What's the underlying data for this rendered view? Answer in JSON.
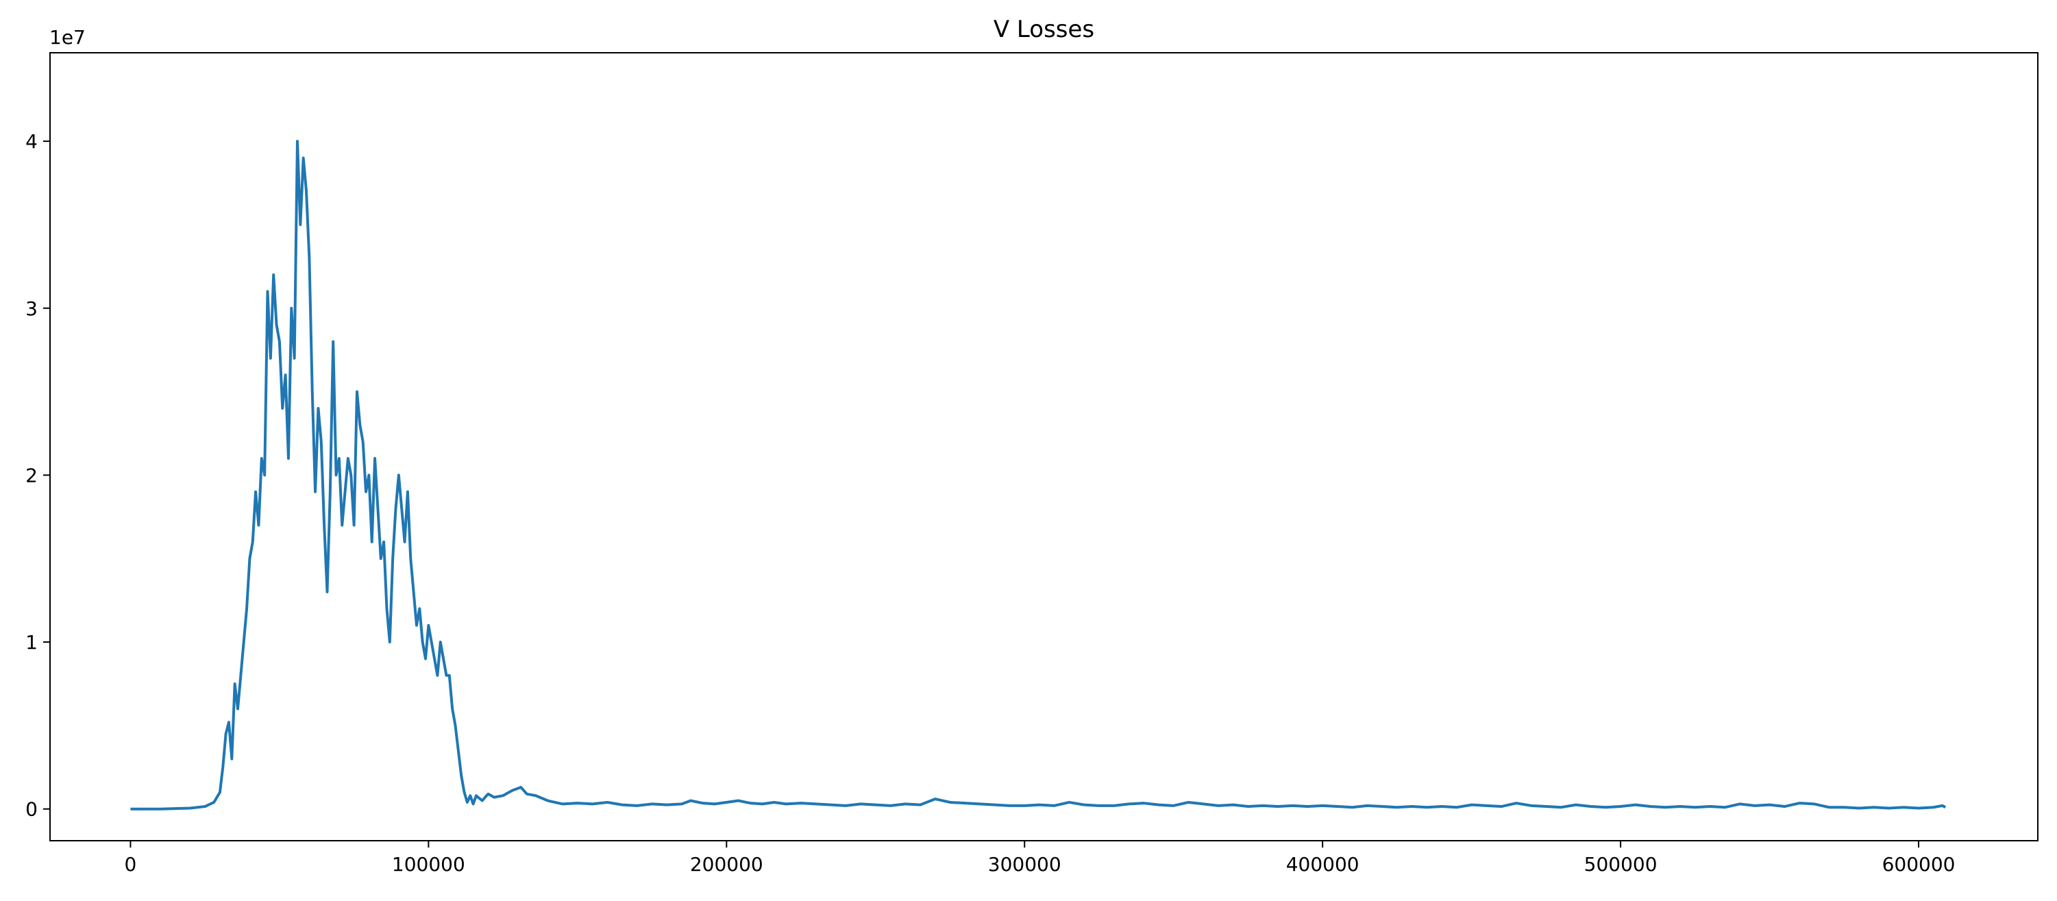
{
  "chart_data": {
    "type": "line",
    "title": "V Losses",
    "xlabel": "",
    "ylabel": "",
    "y_offset_text": "1e7",
    "xlim": [
      -27000,
      640000
    ],
    "ylim": [
      -1.9,
      45.3
    ],
    "y_scale_factor": 10000000,
    "x_ticks": [
      0,
      100000,
      200000,
      300000,
      400000,
      500000,
      600000
    ],
    "x_tick_labels": [
      "0",
      "100000",
      "200000",
      "300000",
      "400000",
      "500000",
      "600000"
    ],
    "y_ticks": [
      0,
      10,
      20,
      30,
      40
    ],
    "y_tick_labels": [
      "0",
      "1",
      "2",
      "3",
      "4"
    ],
    "grid": false,
    "colors": {
      "line": "#1f77b4",
      "axes": "#000000",
      "background": "#ffffff"
    },
    "series": [
      {
        "x": [
          0,
          10000,
          20000,
          25000,
          28000,
          30000,
          31000,
          32000,
          33000,
          34000,
          35000,
          36000,
          37000,
          38000,
          39000,
          40000,
          41000,
          42000,
          43000,
          44000,
          45000,
          46000,
          47000,
          48000,
          49000,
          50000,
          51000,
          52000,
          53000,
          54000,
          55000,
          56000,
          57000,
          58000,
          59000,
          60000,
          61000,
          62000,
          63000,
          64000,
          65000,
          66000,
          67000,
          68000,
          69000,
          70000,
          71000,
          72000,
          73000,
          74000,
          75000,
          76000,
          77000,
          78000,
          79000,
          80000,
          81000,
          82000,
          83000,
          84000,
          85000,
          86000,
          87000,
          88000,
          89000,
          90000,
          91000,
          92000,
          93000,
          94000,
          95000,
          96000,
          97000,
          98000,
          99000,
          100000,
          101000,
          102000,
          103000,
          104000,
          105000,
          106000,
          107000,
          108000,
          109000,
          110000,
          111000,
          112000,
          113000,
          114000,
          115000,
          116000,
          118000,
          120000,
          122000,
          125000,
          128000,
          131000,
          133000,
          136000,
          140000,
          145000,
          150000,
          155000,
          160000,
          165000,
          170000,
          175000,
          180000,
          185000,
          188000,
          192000,
          196000,
          200000,
          204000,
          208000,
          212000,
          216000,
          220000,
          225000,
          230000,
          235000,
          240000,
          245000,
          250000,
          255000,
          260000,
          265000,
          270000,
          275000,
          280000,
          285000,
          290000,
          295000,
          300000,
          305000,
          310000,
          315000,
          320000,
          325000,
          330000,
          335000,
          340000,
          345000,
          350000,
          355000,
          360000,
          365000,
          370000,
          375000,
          380000,
          385000,
          390000,
          395000,
          400000,
          405000,
          410000,
          415000,
          420000,
          425000,
          430000,
          435000,
          440000,
          445000,
          450000,
          455000,
          460000,
          465000,
          470000,
          475000,
          480000,
          485000,
          490000,
          495000,
          500000,
          505000,
          510000,
          515000,
          520000,
          525000,
          530000,
          535000,
          540000,
          545000,
          550000,
          555000,
          560000,
          565000,
          570000,
          575000,
          580000,
          585000,
          590000,
          595000,
          600000,
          605000,
          608000,
          609000
        ],
        "values": [
          0,
          0,
          0.05,
          0.15,
          0.4,
          1,
          2.5,
          4.5,
          5.2,
          3,
          7.5,
          6,
          8,
          10,
          12,
          15,
          16,
          19,
          17,
          21,
          20,
          31,
          27,
          32,
          29,
          28,
          24,
          26,
          21,
          30,
          27,
          40,
          35,
          39,
          37,
          33,
          25,
          19,
          24,
          22,
          17,
          13,
          19,
          28,
          20,
          21,
          17,
          19,
          21,
          20,
          17,
          25,
          23,
          22,
          19,
          20,
          16,
          21,
          18,
          15,
          16,
          12,
          10,
          15,
          18,
          20,
          18,
          16,
          19,
          15,
          13,
          11,
          12,
          10,
          9,
          11,
          10,
          9,
          8,
          10,
          9,
          8,
          8,
          6,
          5,
          3.5,
          2,
          1,
          0.4,
          0.8,
          0.3,
          0.8,
          0.5,
          0.9,
          0.7,
          0.8,
          1.1,
          1.3,
          0.9,
          0.8,
          0.5,
          0.3,
          0.35,
          0.3,
          0.4,
          0.25,
          0.2,
          0.3,
          0.25,
          0.3,
          0.5,
          0.35,
          0.3,
          0.4,
          0.5,
          0.35,
          0.3,
          0.4,
          0.3,
          0.35,
          0.3,
          0.25,
          0.2,
          0.3,
          0.25,
          0.2,
          0.3,
          0.25,
          0.6,
          0.4,
          0.35,
          0.3,
          0.25,
          0.2,
          0.2,
          0.25,
          0.2,
          0.4,
          0.25,
          0.2,
          0.2,
          0.3,
          0.35,
          0.25,
          0.2,
          0.4,
          0.3,
          0.2,
          0.25,
          0.15,
          0.2,
          0.15,
          0.2,
          0.15,
          0.2,
          0.15,
          0.1,
          0.2,
          0.15,
          0.1,
          0.15,
          0.1,
          0.15,
          0.1,
          0.25,
          0.2,
          0.15,
          0.35,
          0.2,
          0.15,
          0.1,
          0.25,
          0.15,
          0.1,
          0.15,
          0.25,
          0.15,
          0.1,
          0.15,
          0.1,
          0.15,
          0.1,
          0.3,
          0.2,
          0.25,
          0.15,
          0.35,
          0.3,
          0.1,
          0.1,
          0.05,
          0.1,
          0.05,
          0.1,
          0.05,
          0.1,
          0.2,
          0.1
        ]
      }
    ]
  }
}
